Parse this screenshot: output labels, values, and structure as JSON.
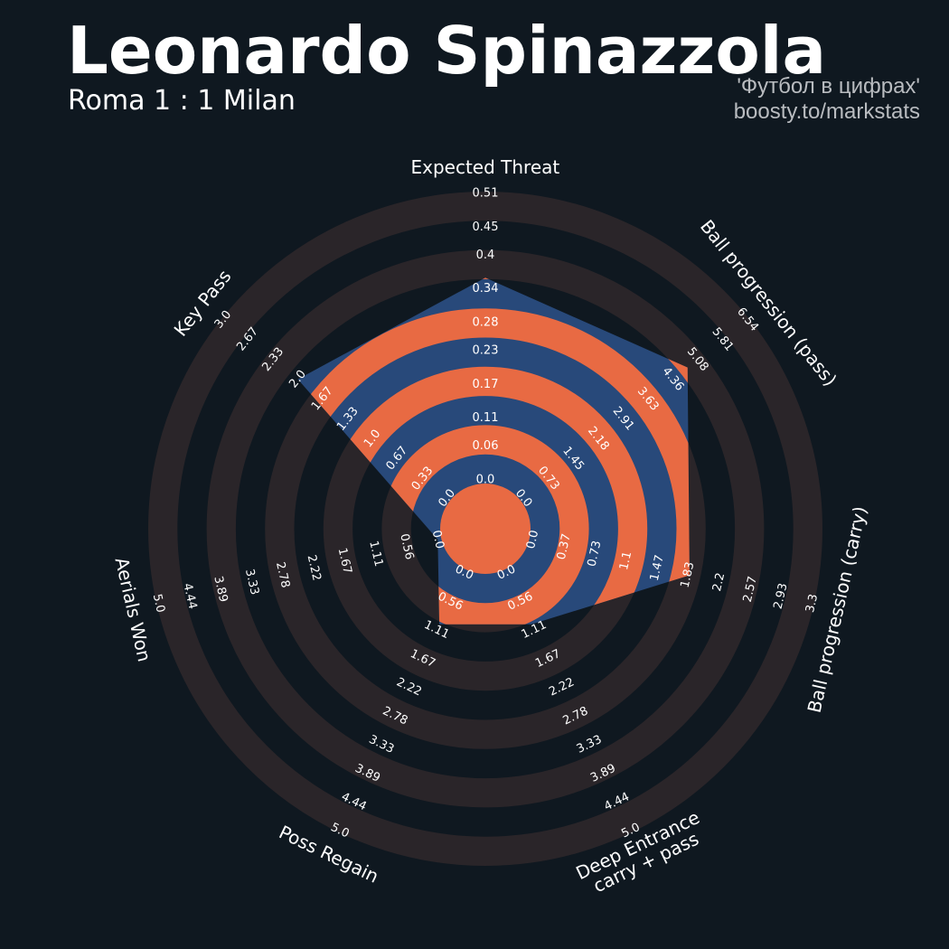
{
  "chart_data": {
    "type": "radar",
    "title": "Leonardo Spinazzola",
    "subtitle": "Roma 1 : 1 Milan",
    "credits": [
      "'Футбол в цифрах'",
      "boosty.to/markstats"
    ],
    "axes": [
      {
        "name": "Expected Threat",
        "lim": [
          0,
          0.51
        ],
        "ticks": [
          {
            "value": 0,
            "label": "0.0"
          },
          0.06,
          0.11,
          0.17,
          0.23,
          0.28,
          0.34,
          0.4,
          0.45,
          0.51
        ]
      },
      {
        "name": "Ball progression (pass)",
        "lim": [
          0,
          6.54
        ],
        "ticks": [
          {
            "value": 0,
            "label": "0.0"
          },
          0.73,
          1.45,
          2.18,
          2.91,
          3.63,
          4.36,
          5.08,
          5.81,
          6.54
        ]
      },
      {
        "name": "Ball progression (carry)",
        "lim": [
          0,
          3.3
        ],
        "ticks": [
          {
            "value": 0,
            "label": "0.0"
          },
          0.37,
          0.73,
          1.1,
          1.47,
          1.83,
          2.2,
          2.57,
          2.93,
          3.3
        ]
      },
      {
        "name": "Deep Entrance\ncarry + pass",
        "lim": [
          0,
          5
        ],
        "ticks": [
          {
            "value": 0,
            "label": "0.0"
          },
          0.56,
          1.11,
          1.67,
          2.22,
          2.78,
          3.33,
          3.89,
          4.44,
          {
            "value": 5,
            "label": "5.0"
          }
        ]
      },
      {
        "name": "Poss Regain",
        "lim": [
          0,
          5
        ],
        "ticks": [
          {
            "value": 0,
            "label": "0.0"
          },
          0.56,
          1.11,
          1.67,
          2.22,
          2.78,
          3.33,
          3.89,
          4.44,
          {
            "value": 5,
            "label": "5.0"
          }
        ]
      },
      {
        "name": "Aerials Won",
        "lim": [
          0,
          5
        ],
        "ticks": [
          {
            "value": 0,
            "label": "0.0"
          },
          0.56,
          1.11,
          1.67,
          2.22,
          2.78,
          3.33,
          3.89,
          4.44,
          {
            "value": 5,
            "label": "5.0"
          }
        ]
      },
      {
        "name": "Key Pass",
        "lim": [
          0,
          3
        ],
        "ticks": [
          {
            "value": 0,
            "label": "0.0"
          },
          0.33,
          0.67,
          {
            "value": 1,
            "label": "1.0"
          },
          1.33,
          1.67,
          {
            "value": 2,
            "label": "2.0"
          },
          2.33,
          2.67,
          {
            "value": 3,
            "label": "3.0"
          }
        ]
      }
    ],
    "values": [
      0.36,
      4.79,
      1.85,
      1.0,
      1.0,
      0,
      2.0
    ],
    "color": "#28497a",
    "band_color": "#e86a43",
    "ring_color": "#2a2529"
  }
}
